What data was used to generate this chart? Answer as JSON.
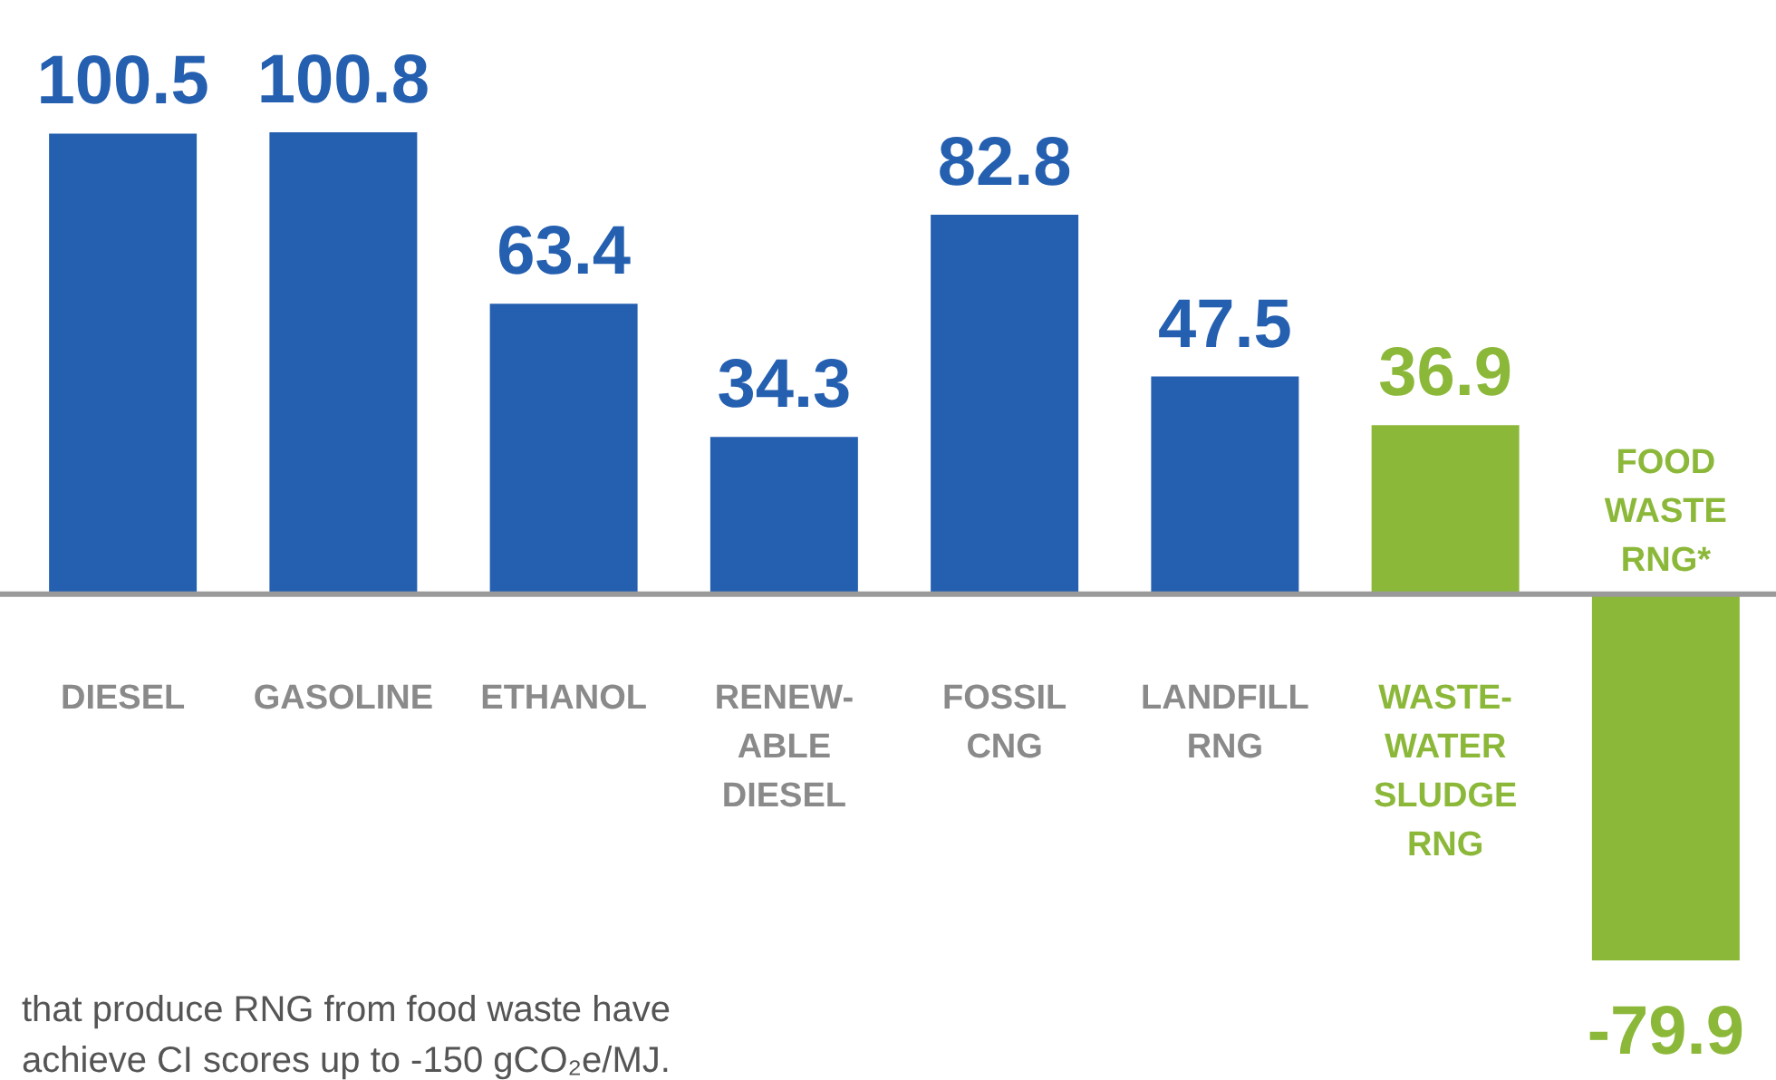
{
  "chart_data": {
    "type": "bar",
    "categories": [
      "DIESEL",
      "GASOLINE",
      "ETHANOL",
      "RENEW-\nABLE\nDIESEL",
      "FOSSIL\nCNG",
      "LANDFILL\nRNG",
      "WASTE-\nWATER\nSLUDGE\nRNG",
      "FOOD\nWASTE\nRNG*"
    ],
    "values": [
      100.5,
      100.8,
      63.4,
      34.3,
      82.8,
      47.5,
      36.9,
      -79.9
    ],
    "colors": [
      "#245fb0",
      "#245fb0",
      "#245fb0",
      "#245fb0",
      "#245fb0",
      "#245fb0",
      "#8cb83a",
      "#8cb83a"
    ],
    "data_labels": true,
    "annotations": [
      "that produce RNG from food waste have\nachieve CI scores up to -150 gCO₂e/MJ."
    ]
  }
}
